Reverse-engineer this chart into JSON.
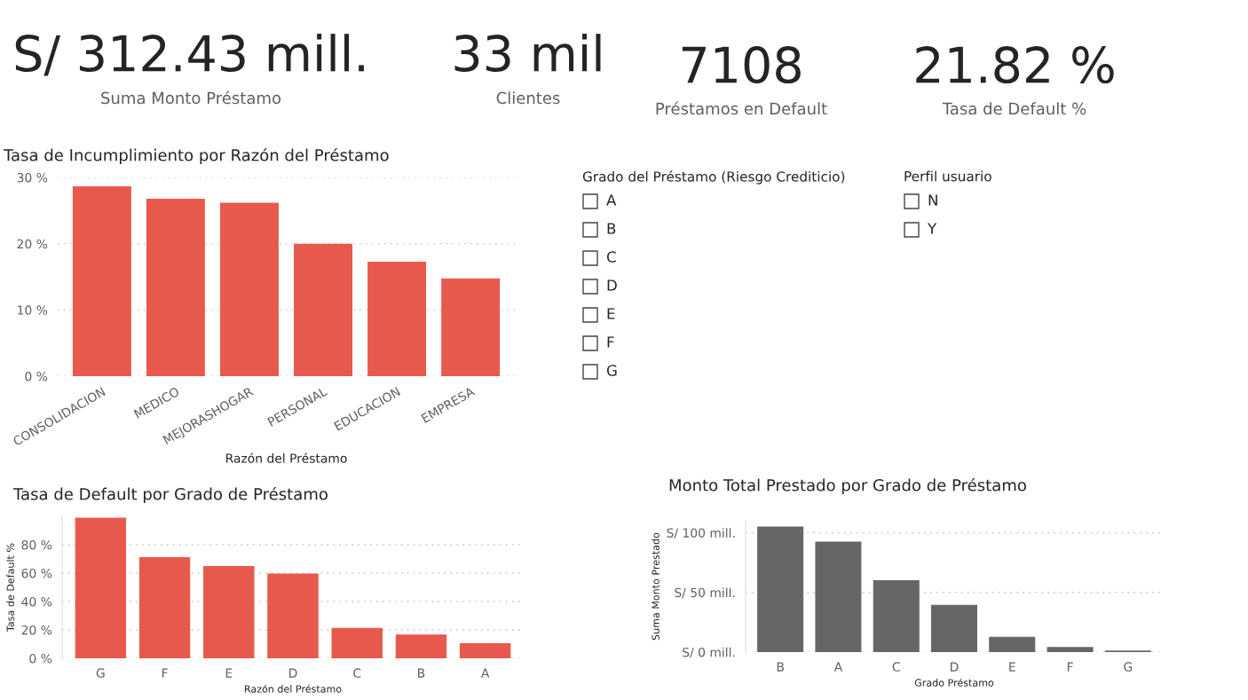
{
  "chart_data": [
    {
      "type": "other",
      "title": "S/ 312.43 mill.",
      "subtitle": "Suma Monto Préstamo"
    },
    {
      "type": "other",
      "title": "33 mil",
      "subtitle": "Clientes"
    },
    {
      "type": "other",
      "title": "7108",
      "subtitle": "Préstamos en Default"
    },
    {
      "type": "other",
      "title": "21.82 %",
      "subtitle": "Tasa de Default %"
    },
    {
      "type": "bar",
      "title": "Tasa de Incumplimiento por Razón del Préstamo",
      "xlabel": "Razón del Préstamo",
      "categories": [
        "CONSOLIDACION",
        "MEDICO",
        "MEJORASHOGAR",
        "PERSONAL",
        "EDUCACION",
        "EMPRESA"
      ],
      "values": [
        28.6,
        26.7,
        26.1,
        19.9,
        17.2,
        14.7
      ],
      "color": "#e8594d",
      "ylim": [
        0,
        30
      ],
      "yticks": [
        {
          "value": 0,
          "label": "0 %"
        },
        {
          "value": 10,
          "label": "10 %"
        },
        {
          "value": 20,
          "label": "20 %"
        },
        {
          "value": 30,
          "label": "30 %"
        }
      ],
      "grid": "y"
    },
    {
      "type": "other",
      "title": "Grado del Préstamo (Riesgo Crediticio)",
      "annotations": [
        "A",
        "B",
        "C",
        "D",
        "E",
        "F",
        "G"
      ]
    },
    {
      "type": "other",
      "title": "Perfil usuario",
      "annotations": [
        "N",
        "Y"
      ]
    },
    {
      "type": "bar",
      "title": "Tasa de Default por Grado de Préstamo",
      "xlabel": "Razón del Préstamo",
      "ylabel": "Tasa de Default %",
      "categories": [
        "G",
        "F",
        "E",
        "D",
        "C",
        "B",
        "A"
      ],
      "values": [
        98.7,
        70.9,
        64.7,
        59.3,
        21.0,
        16.4,
        10.3
      ],
      "color": "#e8594d",
      "ylim": [
        0,
        100
      ],
      "yticks": [
        {
          "value": 0,
          "label": "0 %"
        },
        {
          "value": 20,
          "label": "20 %"
        },
        {
          "value": 40,
          "label": "40 %"
        },
        {
          "value": 60,
          "label": "60 %"
        },
        {
          "value": 80,
          "label": "80 %"
        }
      ],
      "grid": "y"
    },
    {
      "type": "bar",
      "title": "Monto Total Prestado por Grado de Préstamo",
      "xlabel": "Grado Préstamo",
      "ylabel": "Suma Monto Prestado",
      "categories": [
        "B",
        "A",
        "C",
        "D",
        "E",
        "F",
        "G"
      ],
      "values": [
        104.8,
        92.2,
        59.7,
        39.2,
        12.4,
        3.8,
        0.8
      ],
      "color": "#666666",
      "ylim": [
        0,
        110
      ],
      "yticks": [
        {
          "value": 0,
          "label": "S/ 0 mill."
        },
        {
          "value": 50,
          "label": "S/ 50 mill."
        },
        {
          "value": 100,
          "label": "S/ 100 mill."
        }
      ],
      "grid": "y"
    }
  ]
}
